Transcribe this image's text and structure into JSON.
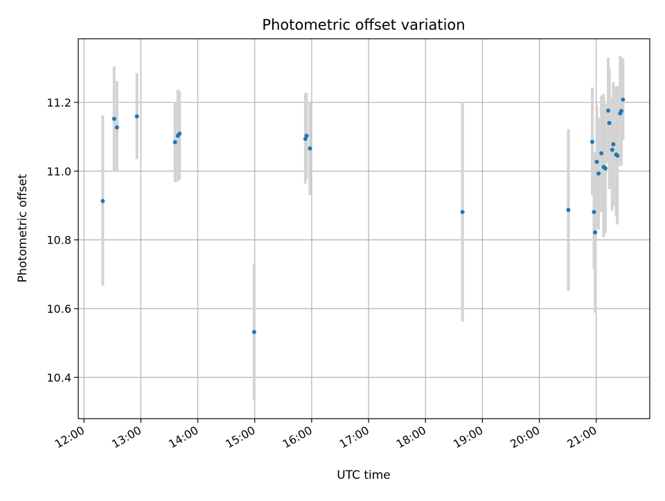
{
  "chart_data": {
    "type": "scatter",
    "title": "Photometric offset variation",
    "xlabel": "UTC time",
    "ylabel": "Photometric offset",
    "x_unit": "hour_of_day",
    "xlim": [
      11.9,
      21.94
    ],
    "ylim": [
      10.28,
      11.385
    ],
    "grid": true,
    "legend": "none",
    "x_ticks": [
      {
        "value": 12,
        "label": "12:00"
      },
      {
        "value": 13,
        "label": "13:00"
      },
      {
        "value": 14,
        "label": "14:00"
      },
      {
        "value": 15,
        "label": "15:00"
      },
      {
        "value": 16,
        "label": "16:00"
      },
      {
        "value": 17,
        "label": "17:00"
      },
      {
        "value": 18,
        "label": "18:00"
      },
      {
        "value": 19,
        "label": "19:00"
      },
      {
        "value": 20,
        "label": "20:00"
      },
      {
        "value": 21,
        "label": "21:00"
      }
    ],
    "y_ticks": [
      {
        "value": 10.4,
        "label": "10.4"
      },
      {
        "value": 10.6,
        "label": "10.6"
      },
      {
        "value": 10.8,
        "label": "10.8"
      },
      {
        "value": 11.0,
        "label": "11.0"
      },
      {
        "value": 11.2,
        "label": "11.2"
      }
    ],
    "colors": {
      "point": "#1f77b4",
      "errorbar": "#d3d3d3",
      "grid": "#b0b0b0"
    },
    "points": [
      {
        "x": 12.33,
        "y": 10.913,
        "lo": 10.667,
        "hi": 11.162
      },
      {
        "x": 12.53,
        "y": 11.152,
        "lo": 11.0,
        "hi": 11.305
      },
      {
        "x": 12.58,
        "y": 11.127,
        "lo": 10.997,
        "hi": 11.262
      },
      {
        "x": 12.93,
        "y": 11.159,
        "lo": 11.035,
        "hi": 11.285
      },
      {
        "x": 13.6,
        "y": 11.084,
        "lo": 10.968,
        "hi": 11.2
      },
      {
        "x": 13.65,
        "y": 11.103,
        "lo": 10.97,
        "hi": 11.237
      },
      {
        "x": 13.68,
        "y": 11.109,
        "lo": 10.975,
        "hi": 11.232
      },
      {
        "x": 14.99,
        "y": 10.532,
        "lo": 10.332,
        "hi": 10.732
      },
      {
        "x": 15.89,
        "y": 11.094,
        "lo": 10.963,
        "hi": 11.225
      },
      {
        "x": 15.91,
        "y": 11.103,
        "lo": 10.977,
        "hi": 11.228
      },
      {
        "x": 15.97,
        "y": 11.066,
        "lo": 10.93,
        "hi": 11.2
      },
      {
        "x": 18.65,
        "y": 10.881,
        "lo": 10.563,
        "hi": 11.198
      },
      {
        "x": 20.51,
        "y": 10.887,
        "lo": 10.652,
        "hi": 11.122
      },
      {
        "x": 20.93,
        "y": 11.085,
        "lo": 10.93,
        "hi": 11.243
      },
      {
        "x": 20.96,
        "y": 10.881,
        "lo": 10.715,
        "hi": 11.045
      },
      {
        "x": 20.98,
        "y": 10.822,
        "lo": 10.588,
        "hi": 11.055
      },
      {
        "x": 21.01,
        "y": 11.027,
        "lo": 10.84,
        "hi": 11.192
      },
      {
        "x": 21.04,
        "y": 10.993,
        "lo": 10.83,
        "hi": 11.155
      },
      {
        "x": 21.09,
        "y": 11.052,
        "lo": 10.88,
        "hi": 11.22
      },
      {
        "x": 21.13,
        "y": 11.012,
        "lo": 10.808,
        "hi": 11.225
      },
      {
        "x": 21.16,
        "y": 11.008,
        "lo": 10.82,
        "hi": 11.195
      },
      {
        "x": 21.21,
        "y": 11.176,
        "lo": 11.025,
        "hi": 11.33
      },
      {
        "x": 21.23,
        "y": 11.14,
        "lo": 10.948,
        "hi": 11.3
      },
      {
        "x": 21.28,
        "y": 11.062,
        "lo": 10.885,
        "hi": 11.215
      },
      {
        "x": 21.3,
        "y": 11.078,
        "lo": 10.9,
        "hi": 11.258
      },
      {
        "x": 21.35,
        "y": 11.048,
        "lo": 10.87,
        "hi": 11.245
      },
      {
        "x": 21.37,
        "y": 11.045,
        "lo": 10.845,
        "hi": 11.248
      },
      {
        "x": 21.42,
        "y": 11.168,
        "lo": 11.015,
        "hi": 11.335
      },
      {
        "x": 21.44,
        "y": 11.175,
        "lo": 11.015,
        "hi": 11.33
      },
      {
        "x": 21.47,
        "y": 11.208,
        "lo": 11.09,
        "hi": 11.328
      }
    ]
  }
}
